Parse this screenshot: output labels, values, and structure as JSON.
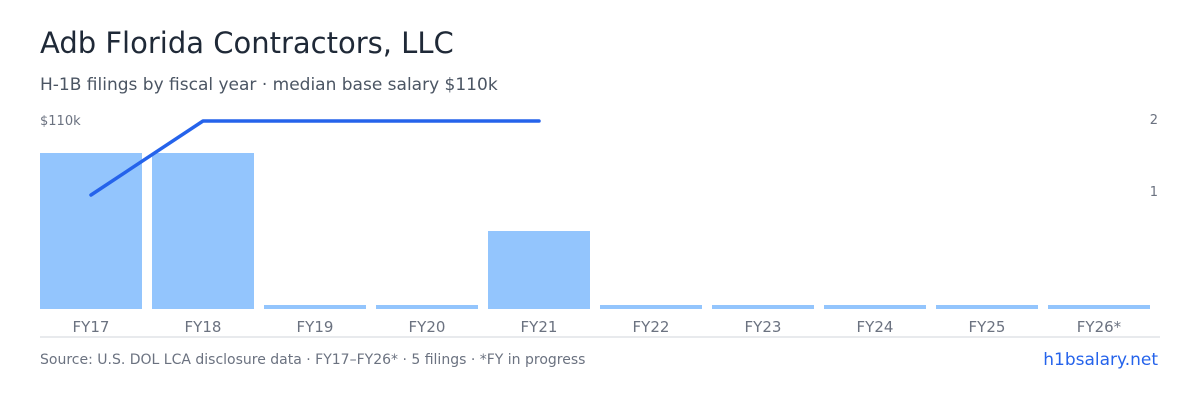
{
  "title": "Adb Florida Contractors, LLC",
  "subtitle": "H-1B filings by fiscal year · median base salary $110k",
  "footer": {
    "source": "Source: U.S. DOL LCA disclosure data · FY17–FY26* · 5 filings · *FY in progress",
    "link": "h1bsalary.net"
  },
  "colors": {
    "bar": "#93c5fd",
    "line": "#2563eb",
    "baseline": "#d1d5db"
  },
  "chart_data": {
    "type": "bar",
    "categories": [
      "FY17",
      "FY18",
      "FY19",
      "FY20",
      "FY21",
      "FY22",
      "FY23",
      "FY24",
      "FY25",
      "FY26*"
    ],
    "filings": [
      2,
      2,
      0,
      0,
      1,
      0,
      0,
      0,
      0,
      0
    ],
    "median_salary_k": [
      100,
      110,
      null,
      null,
      110,
      null,
      null,
      null,
      null,
      null
    ],
    "left_axis_label": "$110k",
    "right_axis": {
      "ticks": [
        "2",
        "1"
      ]
    },
    "grid": false
  }
}
